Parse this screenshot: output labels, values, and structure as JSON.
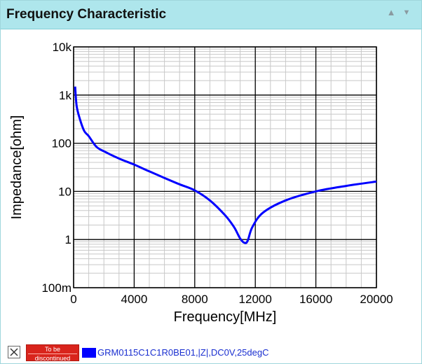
{
  "panel": {
    "title": "Frequency Characteristic",
    "icons": {
      "collapse": "collapse-up-icon",
      "menu": "menu-arrow-icon"
    }
  },
  "chart_data": {
    "type": "line",
    "xlabel": "Frequency[MHz]",
    "ylabel": "Impedance[ohm]",
    "xlim": [
      0,
      20000
    ],
    "ylim": [
      0.1,
      10000
    ],
    "yscale": "log",
    "grid": true,
    "x_ticks": [
      "0",
      "4000",
      "8000",
      "12000",
      "16000",
      "20000"
    ],
    "y_ticks": [
      "100m",
      "1",
      "10",
      "100",
      "1k",
      "10k"
    ],
    "series": [
      {
        "name": "GRM0115C1C1R0BE01,|Z|,DC0V,25degC",
        "color": "#0000ff",
        "x": [
          100,
          200,
          400,
          700,
          1000,
          1500,
          2000,
          3000,
          4000,
          5000,
          6000,
          7000,
          8000,
          9000,
          10000,
          10600,
          11000,
          11300,
          11500,
          11800,
          12500,
          14000,
          16000,
          18000,
          20000
        ],
        "y": [
          1500,
          600,
          330,
          180,
          140,
          85,
          68,
          48,
          36,
          26,
          19,
          14,
          10.5,
          6.5,
          3.2,
          1.8,
          1.05,
          0.85,
          0.95,
          1.8,
          3.6,
          6.5,
          10,
          13,
          16
        ]
      }
    ]
  },
  "legend": {
    "close_icon": "close-x-icon",
    "badge_line1": "To be",
    "badge_line2": "discontinued",
    "swatch_color": "#0000ff",
    "series_label": "GRM0115C1C1R0BE01,|Z|,DC0V,25degC"
  }
}
